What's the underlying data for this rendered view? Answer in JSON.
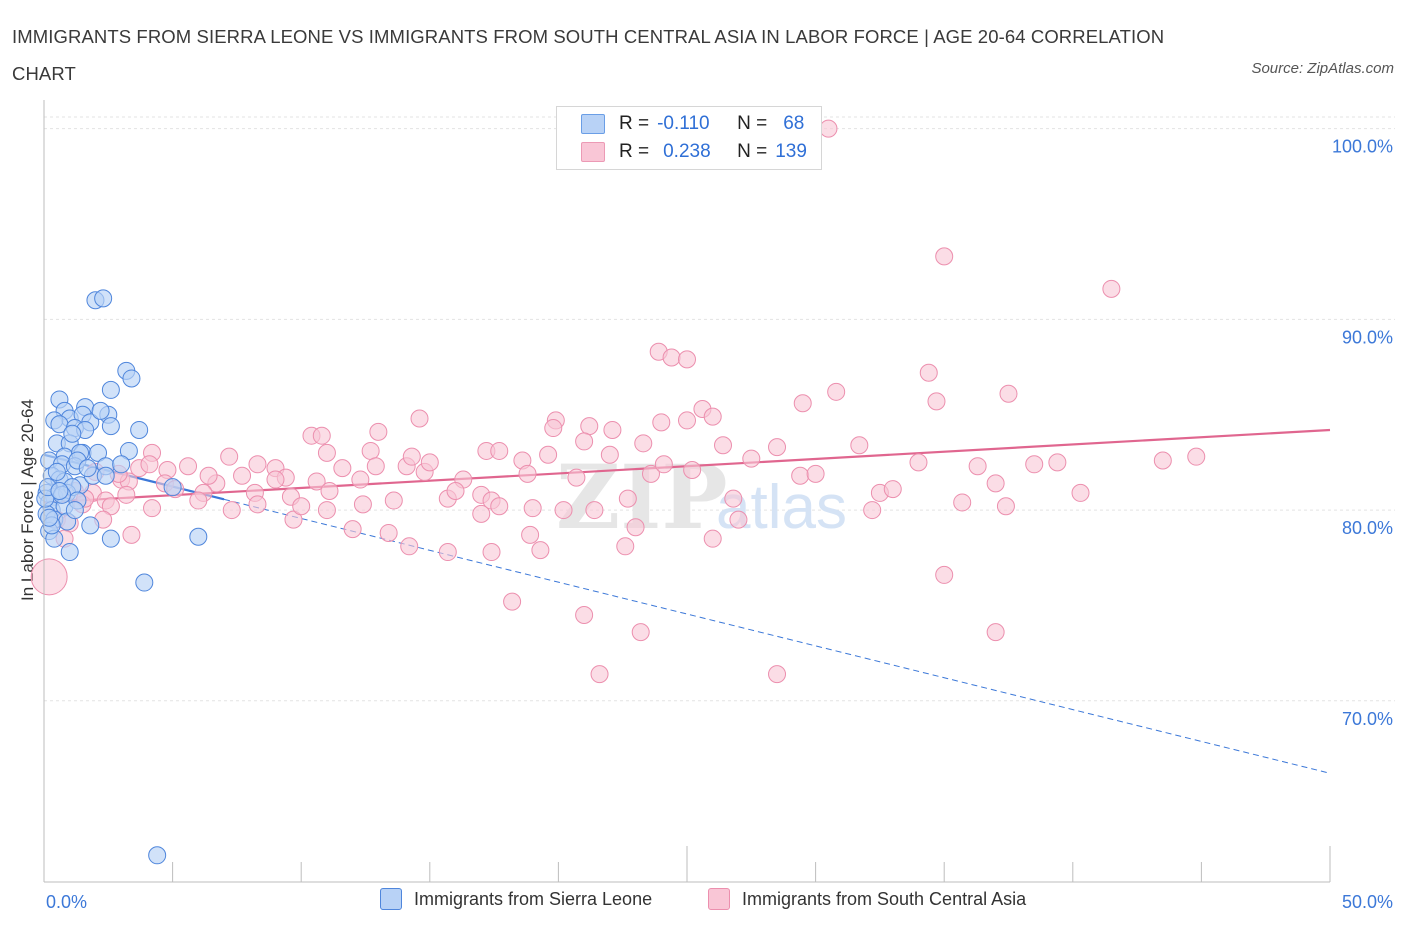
{
  "title": "IMMIGRANTS FROM SIERRA LEONE VS IMMIGRANTS FROM SOUTH CENTRAL ASIA IN LABOR FORCE | AGE 20-64 CORRELATION CHART",
  "source": "Source: ZipAtlas.com",
  "legend": {
    "rows": [
      {
        "r_label": "R =",
        "r_value": "-0.110",
        "n_label": "N =",
        "n_value": "68",
        "fill": "#b8d2f6",
        "stroke": "#6a9ee6"
      },
      {
        "r_label": "R =",
        "r_value": "0.238",
        "n_label": "N =",
        "n_value": "139",
        "fill": "#f9c6d6",
        "stroke": "#ec9ab5"
      }
    ]
  },
  "bottom_legend": {
    "blue_label": "Immigrants from Sierra Leone",
    "pink_label": "Immigrants from South Central Asia"
  },
  "colors": {
    "blue_fill": "#b8d2f6",
    "blue_stroke": "#4f86dc",
    "blue_line": "#3c78d8",
    "pink_fill": "#f9c6d6",
    "pink_stroke": "#ec8fae",
    "pink_line": "#e0668f",
    "tick_text": "#3c78d8",
    "grid": "#e3e3e3"
  },
  "chart_data": {
    "type": "scatter",
    "title": "IMMIGRANTS FROM SIERRA LEONE VS IMMIGRANTS FROM SOUTH CENTRAL ASIA IN LABOR FORCE | AGE 20-64 CORRELATION CHART",
    "xlabel": "",
    "ylabel": "In Labor Force | Age 20-64",
    "xlim": [
      0,
      50
    ],
    "ylim": [
      60.5,
      101.5
    ],
    "x_tick_labels": [
      "0.0%",
      "50.0%"
    ],
    "y_ticks": [
      70,
      80,
      90,
      100
    ],
    "y_tick_labels": [
      "70.0%",
      "80.0%",
      "90.0%",
      "100.0%"
    ],
    "grid": true,
    "legend_position": "top-center",
    "watermark": "ZIPatlas",
    "series": [
      {
        "name": "Immigrants from Sierra Leone",
        "color": "#4f86dc",
        "trend": {
          "x": [
            0,
            50
          ],
          "y": [
            82.9,
            66.2
          ],
          "solid_until_x": 7
        },
        "points": [
          [
            2.0,
            91.0
          ],
          [
            2.3,
            91.1
          ],
          [
            3.2,
            87.3
          ],
          [
            3.4,
            86.9
          ],
          [
            2.6,
            86.3
          ],
          [
            0.6,
            85.8
          ],
          [
            0.8,
            85.2
          ],
          [
            1.6,
            85.4
          ],
          [
            1.0,
            84.8
          ],
          [
            1.5,
            85.0
          ],
          [
            1.8,
            84.6
          ],
          [
            2.5,
            85.0
          ],
          [
            0.4,
            84.7
          ],
          [
            0.6,
            84.5
          ],
          [
            1.2,
            84.3
          ],
          [
            1.6,
            84.2
          ],
          [
            2.6,
            84.4
          ],
          [
            3.7,
            84.2
          ],
          [
            0.5,
            83.5
          ],
          [
            1.0,
            83.5
          ],
          [
            1.5,
            83.0
          ],
          [
            0.8,
            82.8
          ],
          [
            1.4,
            83.0
          ],
          [
            2.1,
            83.0
          ],
          [
            3.3,
            83.1
          ],
          [
            0.2,
            82.6
          ],
          [
            0.7,
            82.4
          ],
          [
            1.2,
            82.3
          ],
          [
            1.3,
            82.6
          ],
          [
            2.4,
            82.3
          ],
          [
            0.3,
            81.8
          ],
          [
            0.6,
            81.6
          ],
          [
            0.8,
            81.5
          ],
          [
            1.4,
            81.3
          ],
          [
            1.9,
            81.8
          ],
          [
            2.4,
            81.8
          ],
          [
            0.1,
            80.9
          ],
          [
            0.4,
            80.7
          ],
          [
            0.9,
            80.9
          ],
          [
            1.1,
            81.2
          ],
          [
            0.2,
            80.4
          ],
          [
            0.3,
            80.0
          ],
          [
            0.8,
            80.2
          ],
          [
            1.3,
            80.5
          ],
          [
            0.1,
            79.8
          ],
          [
            0.4,
            79.5
          ],
          [
            0.9,
            79.4
          ],
          [
            1.8,
            79.2
          ],
          [
            0.2,
            78.9
          ],
          [
            0.4,
            78.5
          ],
          [
            2.6,
            78.5
          ],
          [
            6.0,
            78.6
          ],
          [
            1.0,
            77.8
          ],
          [
            3.9,
            76.2
          ],
          [
            4.4,
            61.9
          ],
          [
            0.05,
            80.6
          ],
          [
            0.15,
            81.2
          ],
          [
            0.5,
            82.0
          ],
          [
            1.1,
            84.0
          ],
          [
            2.2,
            85.2
          ],
          [
            0.3,
            79.2
          ],
          [
            0.7,
            80.8
          ],
          [
            1.7,
            82.2
          ],
          [
            0.6,
            81.0
          ],
          [
            0.2,
            79.6
          ],
          [
            1.2,
            80.0
          ],
          [
            3.0,
            82.4
          ],
          [
            5.0,
            81.2
          ]
        ]
      },
      {
        "name": "Immigrants from South Central Asia",
        "color": "#ec8fae",
        "trend": {
          "x": [
            0,
            50
          ],
          "y": [
            80.4,
            84.2
          ]
        },
        "points": [
          [
            30.5,
            100.0
          ],
          [
            35.0,
            93.3
          ],
          [
            41.5,
            91.6
          ],
          [
            23.9,
            88.3
          ],
          [
            24.4,
            88.0
          ],
          [
            25.0,
            87.9
          ],
          [
            34.4,
            87.2
          ],
          [
            34.7,
            85.7
          ],
          [
            37.5,
            86.1
          ],
          [
            30.8,
            86.2
          ],
          [
            29.5,
            85.6
          ],
          [
            25.6,
            85.3
          ],
          [
            19.9,
            84.7
          ],
          [
            19.8,
            84.3
          ],
          [
            21.2,
            84.4
          ],
          [
            14.6,
            84.8
          ],
          [
            24.0,
            84.6
          ],
          [
            25.0,
            84.7
          ],
          [
            26.0,
            84.9
          ],
          [
            13.0,
            84.1
          ],
          [
            10.4,
            83.9
          ],
          [
            22.1,
            84.2
          ],
          [
            21.0,
            83.6
          ],
          [
            23.3,
            83.5
          ],
          [
            26.4,
            83.4
          ],
          [
            28.5,
            83.3
          ],
          [
            31.7,
            83.4
          ],
          [
            10.8,
            83.9
          ],
          [
            11.0,
            83.0
          ],
          [
            12.7,
            83.1
          ],
          [
            17.2,
            83.1
          ],
          [
            19.6,
            82.9
          ],
          [
            17.7,
            83.1
          ],
          [
            7.2,
            82.8
          ],
          [
            4.2,
            83.0
          ],
          [
            5.6,
            82.3
          ],
          [
            3.7,
            82.2
          ],
          [
            4.1,
            82.4
          ],
          [
            4.8,
            82.1
          ],
          [
            9.0,
            82.2
          ],
          [
            8.3,
            82.4
          ],
          [
            11.6,
            82.2
          ],
          [
            12.9,
            82.3
          ],
          [
            14.1,
            82.3
          ],
          [
            14.3,
            82.8
          ],
          [
            18.6,
            82.6
          ],
          [
            25.2,
            82.1
          ],
          [
            36.3,
            82.3
          ],
          [
            43.5,
            82.6
          ],
          [
            39.4,
            82.5
          ],
          [
            3.0,
            81.6
          ],
          [
            3.3,
            81.5
          ],
          [
            4.7,
            81.4
          ],
          [
            6.7,
            81.4
          ],
          [
            7.7,
            81.8
          ],
          [
            9.4,
            81.7
          ],
          [
            10.6,
            81.5
          ],
          [
            12.3,
            81.6
          ],
          [
            16.3,
            81.6
          ],
          [
            18.8,
            81.9
          ],
          [
            23.6,
            81.9
          ],
          [
            29.4,
            81.8
          ],
          [
            37.0,
            81.4
          ],
          [
            1.2,
            81.0
          ],
          [
            1.9,
            80.9
          ],
          [
            3.2,
            80.8
          ],
          [
            5.1,
            81.1
          ],
          [
            6.2,
            80.9
          ],
          [
            8.2,
            80.9
          ],
          [
            9.6,
            80.7
          ],
          [
            11.1,
            81.0
          ],
          [
            15.7,
            80.6
          ],
          [
            17.0,
            80.8
          ],
          [
            17.4,
            80.5
          ],
          [
            22.7,
            80.6
          ],
          [
            32.5,
            80.9
          ],
          [
            40.3,
            80.9
          ],
          [
            1.5,
            80.3
          ],
          [
            2.4,
            80.5
          ],
          [
            2.6,
            80.2
          ],
          [
            4.2,
            80.1
          ],
          [
            7.3,
            80.0
          ],
          [
            8.3,
            80.3
          ],
          [
            11.0,
            80.0
          ],
          [
            12.4,
            80.3
          ],
          [
            17.7,
            80.2
          ],
          [
            19.0,
            80.1
          ],
          [
            20.2,
            80.0
          ],
          [
            21.4,
            80.0
          ],
          [
            32.2,
            80.0
          ],
          [
            35.7,
            80.4
          ],
          [
            37.4,
            80.2
          ],
          [
            0.5,
            79.5
          ],
          [
            1.0,
            79.3
          ],
          [
            2.3,
            79.5
          ],
          [
            9.7,
            79.5
          ],
          [
            13.4,
            78.8
          ],
          [
            17.0,
            79.8
          ],
          [
            23.0,
            79.1
          ],
          [
            27.0,
            79.5
          ],
          [
            0.8,
            78.5
          ],
          [
            3.4,
            78.7
          ],
          [
            14.2,
            78.1
          ],
          [
            15.7,
            77.8
          ],
          [
            17.4,
            77.8
          ],
          [
            18.9,
            78.7
          ],
          [
            19.3,
            77.9
          ],
          [
            22.6,
            78.1
          ],
          [
            26.0,
            78.5
          ],
          [
            35.0,
            76.6
          ],
          [
            18.2,
            75.2
          ],
          [
            21.0,
            74.5
          ],
          [
            23.2,
            73.6
          ],
          [
            37.0,
            73.6
          ],
          [
            21.6,
            71.4
          ],
          [
            28.5,
            71.4
          ],
          [
            0.2,
            76.5
          ],
          [
            6.4,
            81.8
          ],
          [
            14.8,
            82.0
          ],
          [
            20.7,
            81.7
          ],
          [
            24.1,
            82.4
          ],
          [
            6.0,
            80.5
          ],
          [
            12.0,
            79.0
          ],
          [
            27.5,
            82.7
          ],
          [
            34.0,
            82.5
          ],
          [
            38.5,
            82.4
          ],
          [
            2.0,
            82.0
          ],
          [
            16.0,
            81.0
          ],
          [
            13.6,
            80.5
          ],
          [
            26.8,
            80.6
          ],
          [
            30.0,
            81.9
          ],
          [
            33.0,
            81.1
          ],
          [
            9.0,
            81.6
          ],
          [
            22.0,
            82.9
          ],
          [
            15.0,
            82.5
          ],
          [
            44.8,
            82.8
          ],
          [
            1.6,
            80.6
          ],
          [
            2.9,
            81.9
          ],
          [
            10.0,
            80.2
          ]
        ]
      }
    ]
  }
}
